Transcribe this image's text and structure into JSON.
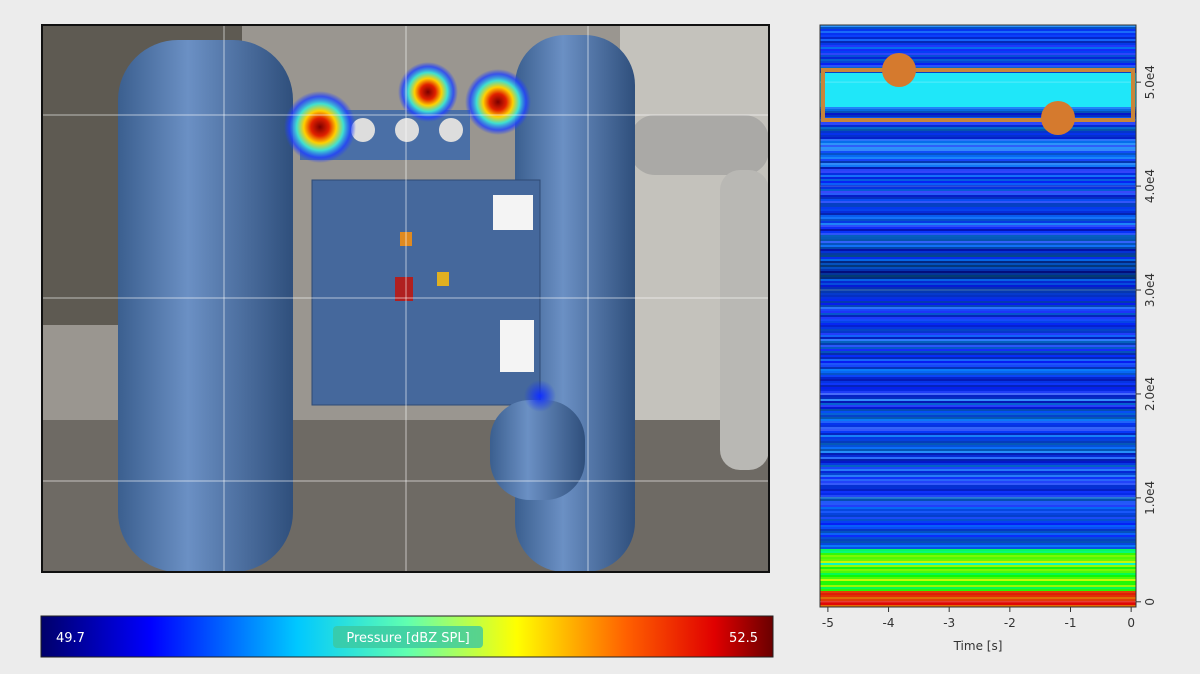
{
  "colorbar": {
    "min": 49.7,
    "title": "Pressure [dBZ SPL]",
    "max": 52.5
  },
  "spectrogram": {
    "xlabel": "Time [s]",
    "xlim": [
      -5.13,
      0.08
    ],
    "xticks": [
      -5,
      -4,
      -3,
      -2,
      -1,
      0
    ],
    "ylim": [
      -500,
      55500
    ],
    "yticks": [
      0,
      {
        "value": 10000,
        "label": "1.0e4"
      },
      {
        "value": 20000,
        "label": "2.0e4"
      },
      {
        "value": 30000,
        "label": "3.0e4"
      },
      {
        "value": 40000,
        "label": "4.0e4"
      },
      {
        "value": 50000,
        "label": "5.0e4"
      }
    ]
  }
}
